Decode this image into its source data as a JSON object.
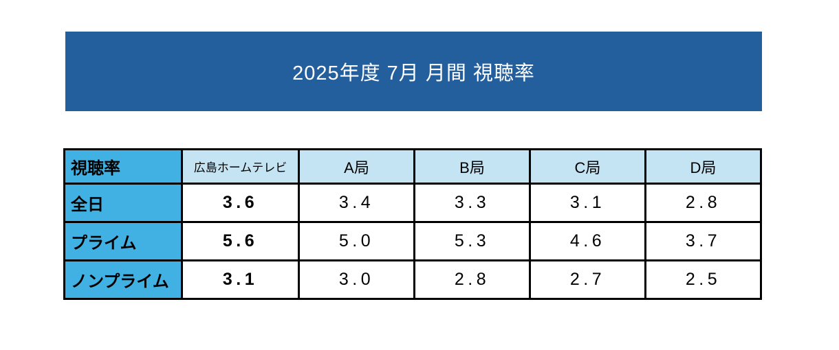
{
  "banner": {
    "title": "2025年度 7月 月間 視聴率"
  },
  "table": {
    "corner_label": "視聴率",
    "columns": [
      "広島ホームテレビ",
      "A局",
      "B局",
      "C局",
      "D局"
    ],
    "rows": [
      {
        "label": "全日",
        "values": [
          "3.6",
          "3.4",
          "3.3",
          "3.1",
          "2.8"
        ]
      },
      {
        "label": "プライム",
        "values": [
          "5.6",
          "5.0",
          "5.3",
          "4.6",
          "3.7"
        ]
      },
      {
        "label": "ノンプライム",
        "values": [
          "3.1",
          "3.0",
          "2.8",
          "2.7",
          "2.5"
        ]
      }
    ]
  },
  "colors": {
    "banner_bg": "#235E9D",
    "banner_text": "#FFFFFF",
    "row_header_fill": "#41B0E2",
    "column_header_fill": "#C5E4F3",
    "cell_fill": "#FFFFFF",
    "border": "#000000",
    "text": "#000000"
  },
  "chart_data": {
    "type": "table",
    "title": "2025年度 7月 月間 視聴率",
    "categories": [
      "広島ホームテレビ",
      "A局",
      "B局",
      "C局",
      "D局"
    ],
    "series": [
      {
        "name": "全日",
        "values": [
          3.6,
          3.4,
          3.3,
          3.1,
          2.8
        ]
      },
      {
        "name": "プライム",
        "values": [
          5.6,
          5.0,
          5.3,
          4.6,
          3.7
        ]
      },
      {
        "name": "ノンプライム",
        "values": [
          3.1,
          3.0,
          2.8,
          2.7,
          2.5
        ]
      }
    ]
  }
}
